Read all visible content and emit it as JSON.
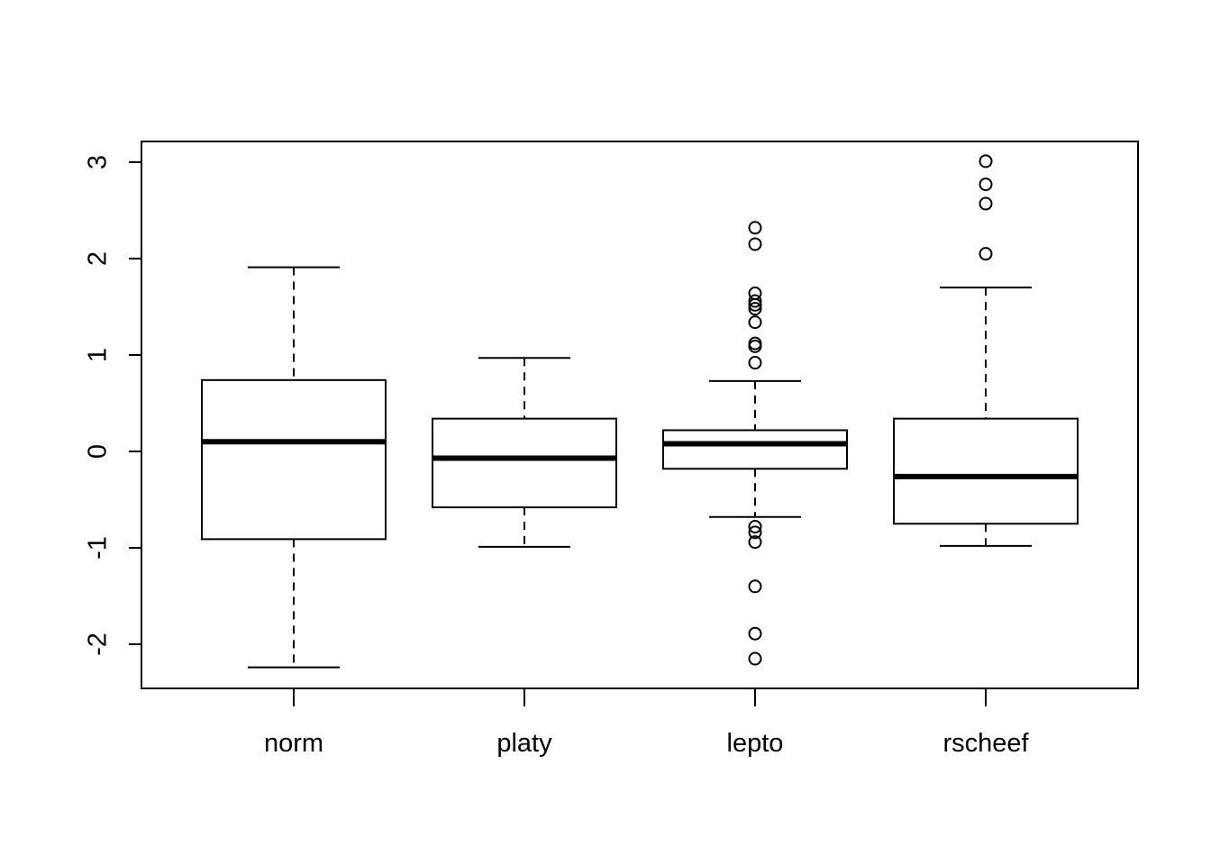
{
  "chart_data": {
    "type": "boxplot",
    "title": "",
    "xlabel": "",
    "ylabel": "",
    "ylim": [
      -2.45,
      3.2
    ],
    "yticks": [
      -2,
      -1,
      0,
      1,
      2,
      3
    ],
    "ytick_labels": [
      "-2",
      "-1",
      "0",
      "1",
      "2",
      "3"
    ],
    "categories": [
      "norm",
      "platy",
      "lepto",
      "rscheef"
    ],
    "boxes": [
      {
        "name": "norm",
        "whisker_low": -2.24,
        "q1": -0.91,
        "median": 0.1,
        "q3": 0.74,
        "whisker_high": 1.91,
        "outliers": []
      },
      {
        "name": "platy",
        "whisker_low": -0.99,
        "q1": -0.58,
        "median": -0.07,
        "q3": 0.34,
        "whisker_high": 0.97,
        "outliers": []
      },
      {
        "name": "lepto",
        "whisker_low": -0.68,
        "q1": -0.18,
        "median": 0.08,
        "q3": 0.22,
        "whisker_high": 0.73,
        "outliers": [
          2.32,
          2.15,
          1.64,
          1.56,
          1.52,
          1.48,
          1.34,
          1.12,
          1.09,
          0.92,
          -0.78,
          -0.84,
          -0.94,
          -1.4,
          -1.89,
          -2.15
        ]
      },
      {
        "name": "rscheef",
        "whisker_low": -0.98,
        "q1": -0.75,
        "median": -0.26,
        "q3": 0.34,
        "whisker_high": 1.7,
        "outliers": [
          3.01,
          2.77,
          2.57,
          2.05
        ]
      }
    ],
    "grid": false,
    "legend": "none",
    "colors": {
      "stroke": "#000000",
      "fill": "#ffffff"
    }
  }
}
